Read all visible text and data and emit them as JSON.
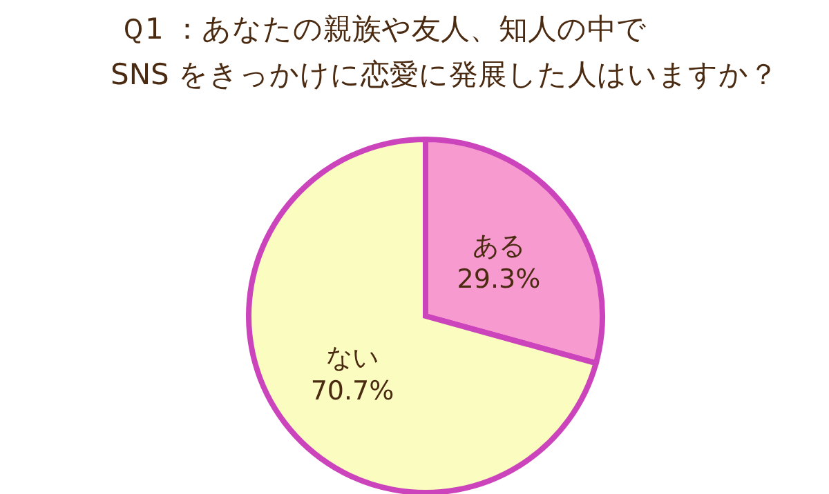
{
  "chart_data": {
    "type": "pie",
    "title": "Ｑ1 ：あなたの親族や友人、知人の中で\nSNS をきっかけに恋愛に発展した人はいますか？",
    "categories": [
      "ある",
      "ない"
    ],
    "values": [
      29.3,
      70.7
    ],
    "colors": [
      "#f79ad0",
      "#fafcc0"
    ],
    "value_labels": [
      "29.3%",
      "70.7%"
    ],
    "legend": false
  }
}
